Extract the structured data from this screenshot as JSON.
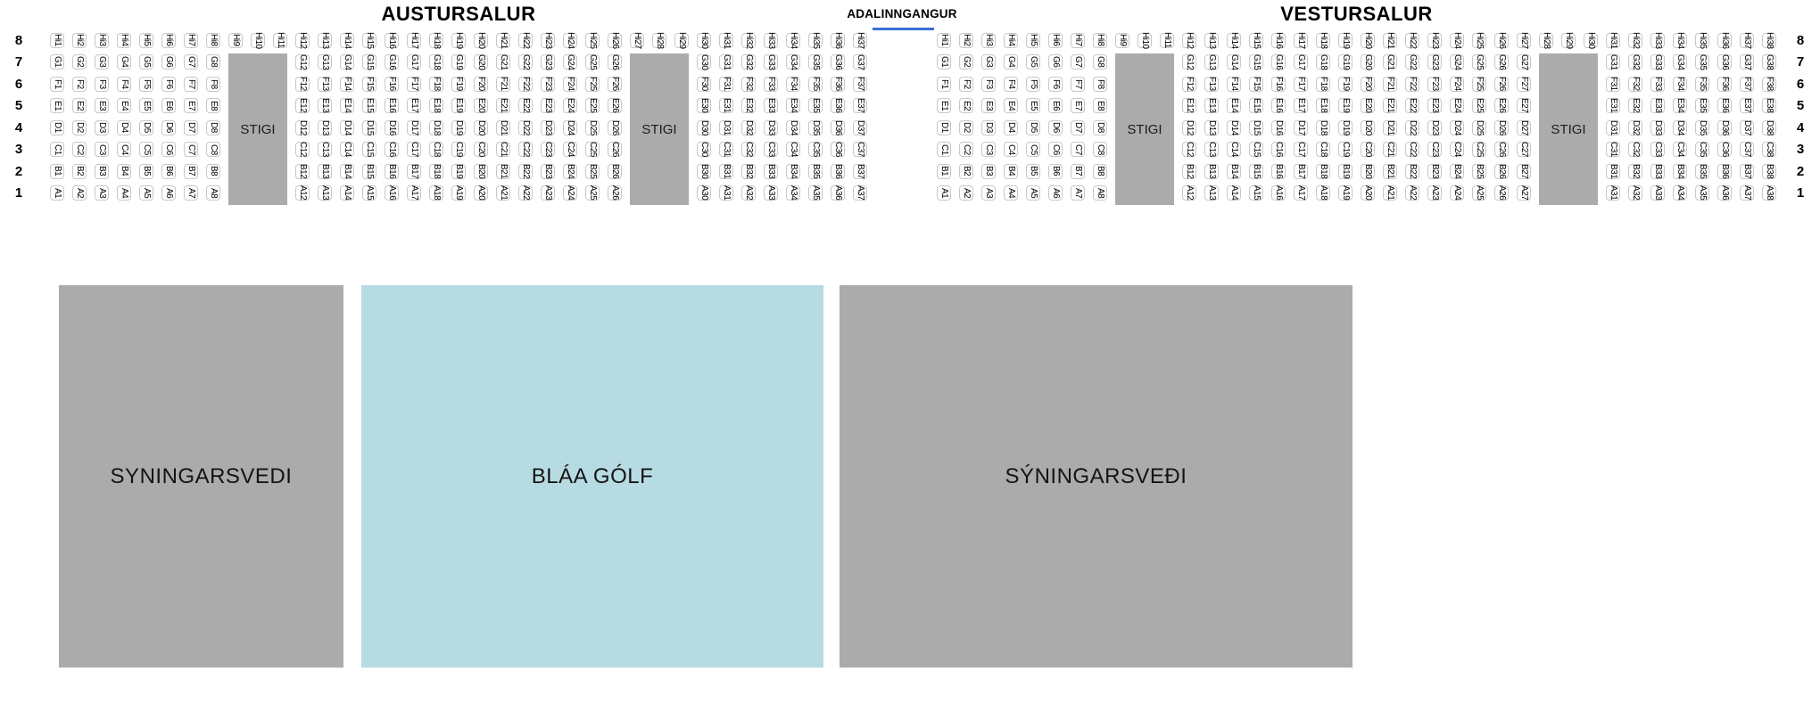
{
  "map_title_left": "AUSTURSALUR",
  "map_title_right": "VESTURSALUR",
  "row_numbers": [
    "8",
    "7",
    "6",
    "5",
    "4",
    "3",
    "2",
    "1"
  ],
  "halls": [
    {
      "id": "austursalur",
      "title": "AUSTURSALUR",
      "row_letters": [
        "Hi",
        "G",
        "F",
        "E",
        "D",
        "C",
        "B",
        "A"
      ],
      "columns": 37,
      "hi_only_ranges": [
        [
          9,
          11
        ],
        [
          27,
          29
        ]
      ],
      "stigi_label": "STIGI"
    },
    {
      "id": "vestursalur",
      "title": "VESTURSALUR",
      "row_letters": [
        "Hi",
        "G",
        "F",
        "E",
        "D",
        "C",
        "B",
        "A"
      ],
      "columns": 38,
      "hi_only_ranges": [
        [
          9,
          11
        ],
        [
          28,
          30
        ]
      ],
      "stigi_label": "STIGI"
    }
  ],
  "entrance": {
    "label": "ADALINNGANGUR",
    "underline_color": "#3c6ed3"
  },
  "areas": [
    {
      "id": "syningarsvedi-left",
      "label": "SYNINGARSVEDI",
      "color": "#ababab"
    },
    {
      "id": "blaa-golf",
      "label": "BLÁA GÓLF",
      "color": "#b7dbe3"
    },
    {
      "id": "syningarsvedi-right",
      "label": "SÝNINGARSVEÐI",
      "color": "#ababab"
    }
  ],
  "colors": {
    "stigi_fill": "#ababab",
    "seat_border": "#c8c8c8",
    "seat_fill": "#ffffff",
    "text": "#000000"
  }
}
